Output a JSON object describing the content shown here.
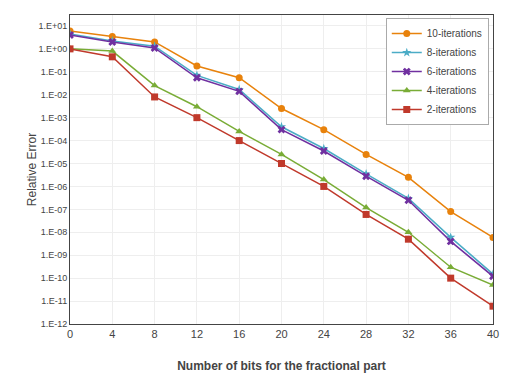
{
  "chart_data": {
    "type": "line",
    "xlabel": "Number of bits for the fractional part",
    "ylabel": "Relative Error",
    "x": [
      0,
      4,
      8,
      12,
      16,
      20,
      24,
      28,
      32,
      36,
      40
    ],
    "series": [
      {
        "name": "10-iterations",
        "color": "#E8820C",
        "marker": "circle",
        "values": [
          6.0,
          3.5,
          2.0,
          0.18,
          0.055,
          0.0025,
          0.0003,
          2.5e-05,
          2.5e-06,
          8e-08,
          6e-09
        ]
      },
      {
        "name": "8-iterations",
        "color": "#4BACC6",
        "marker": "star",
        "values": [
          4.5,
          2.2,
          1.3,
          0.07,
          0.017,
          0.0004,
          4.5e-05,
          3.5e-06,
          3e-07,
          6e-09,
          1.5e-10
        ]
      },
      {
        "name": "6-iterations",
        "color": "#7030A0",
        "marker": "x",
        "values": [
          4.0,
          2.0,
          1.1,
          0.055,
          0.014,
          0.0003,
          3.5e-05,
          2.8e-06,
          2.5e-07,
          4e-09,
          1.2e-10
        ]
      },
      {
        "name": "4-iterations",
        "color": "#79AC36",
        "marker": "triangle-up",
        "values": [
          1.0,
          0.8,
          0.025,
          0.003,
          0.00025,
          2.5e-05,
          2e-06,
          1.2e-07,
          1e-08,
          3e-10,
          5e-11
        ]
      },
      {
        "name": "2-iterations",
        "color": "#C0392B",
        "marker": "square",
        "values": [
          1.0,
          0.45,
          0.008,
          0.001,
          0.0001,
          1e-05,
          1e-06,
          6e-08,
          5e-09,
          1e-10,
          6e-12
        ]
      }
    ],
    "xlim": [
      0,
      40
    ],
    "ylim": [
      1e-12,
      30
    ],
    "xticks": [
      0,
      4,
      8,
      12,
      16,
      20,
      24,
      28,
      32,
      36,
      40
    ],
    "yticks": [
      {
        "value": 1e-12,
        "label": "1.E-12"
      },
      {
        "value": 1e-11,
        "label": "1.E-11"
      },
      {
        "value": 1e-10,
        "label": "1.E-10"
      },
      {
        "value": 1e-09,
        "label": "1.E-09"
      },
      {
        "value": 1e-08,
        "label": "1.E-08"
      },
      {
        "value": 1e-07,
        "label": "1.E-07"
      },
      {
        "value": 1e-06,
        "label": "1.E-06"
      },
      {
        "value": 1e-05,
        "label": "1.E-05"
      },
      {
        "value": 0.0001,
        "label": "1.E-04"
      },
      {
        "value": 0.001,
        "label": "1.E-03"
      },
      {
        "value": 0.01,
        "label": "1.E-02"
      },
      {
        "value": 0.1,
        "label": "1.E-01"
      },
      {
        "value": 1.0,
        "label": "1.E+00"
      },
      {
        "value": 10.0,
        "label": "1.E+01"
      }
    ],
    "log": "y",
    "grid": true,
    "legend": "upper right"
  }
}
